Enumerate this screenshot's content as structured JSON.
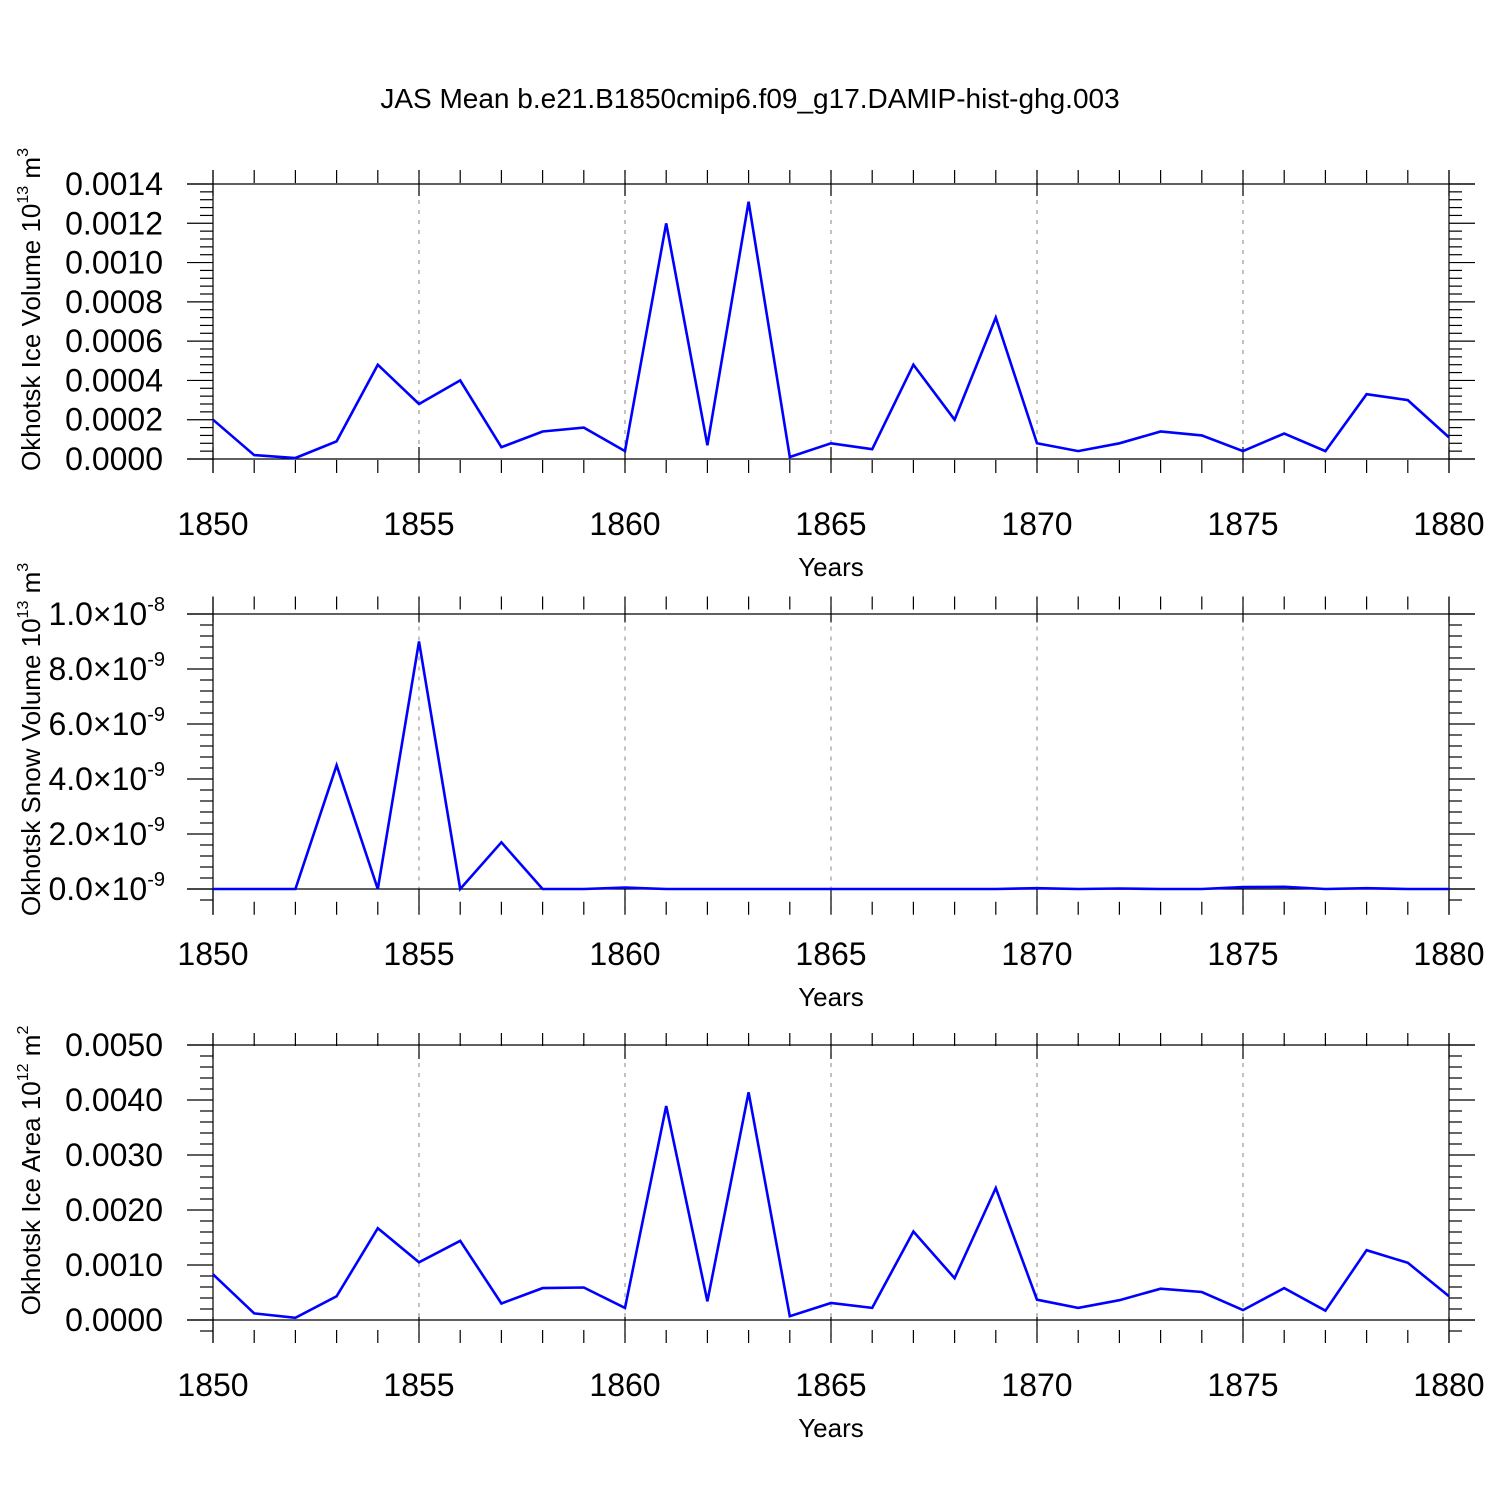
{
  "title": "JAS Mean b.e21.B1850cmip6.f09_g17.DAMIP-hist-ghg.003",
  "colors": {
    "line": "#0000ff",
    "axis": "#000000",
    "grid": "#9a9a9a"
  },
  "chart_data": [
    {
      "type": "line",
      "title": "JAS Mean b.e21.B1850cmip6.f09_g17.DAMIP-hist-ghg.003",
      "xlabel": "Years",
      "ylabel": {
        "text": "Okhotsk Ice Volume 10",
        "exp": "13",
        "unit": " m",
        "unit_exp": "3"
      },
      "xlim": [
        1850,
        1880
      ],
      "ylim": [
        0,
        0.0014
      ],
      "ymin_axis": -1e-05,
      "ymax_axis": 0.00141,
      "yticks": [
        0,
        0.0002,
        0.0004,
        0.0006,
        0.0008,
        0.001,
        0.0012,
        0.0014
      ],
      "ytick_labels": [
        "0.0000",
        "0.0002",
        "0.0004",
        "0.0006",
        "0.0008",
        "0.0010",
        "0.0012",
        "0.0014"
      ],
      "yminor_step": 4e-05,
      "xticks": [
        1850,
        1855,
        1860,
        1865,
        1870,
        1875,
        1880
      ],
      "xtick_labels": [
        "1850",
        "1855",
        "1860",
        "1865",
        "1870",
        "1875",
        "1880"
      ],
      "grid": "dashed vertical at major x ticks",
      "x": [
        1850,
        1851,
        1852,
        1853,
        1854,
        1855,
        1856,
        1857,
        1858,
        1859,
        1860,
        1861,
        1862,
        1863,
        1864,
        1865,
        1866,
        1867,
        1868,
        1869,
        1870,
        1871,
        1872,
        1873,
        1874,
        1875,
        1876,
        1877,
        1878,
        1879,
        1880
      ],
      "series": [
        {
          "name": "Okhotsk Ice Volume",
          "color": "#0000ff",
          "values": [
            0.0002,
            2e-05,
            5e-06,
            9e-05,
            0.00048,
            0.00028,
            0.0004,
            6e-05,
            0.00014,
            0.00016,
            4e-05,
            0.0012,
            7e-05,
            0.00131,
            1e-05,
            8e-05,
            5e-05,
            0.00048,
            0.0002,
            0.00072,
            8e-05,
            4e-05,
            8e-05,
            0.00014,
            0.00012,
            4e-05,
            0.00013,
            4e-05,
            0.00033,
            0.0003,
            0.00011
          ]
        }
      ]
    },
    {
      "type": "line",
      "xlabel": "Years",
      "ylabel": {
        "text": "Okhotsk Snow Volume 10",
        "exp": "13",
        "unit": " m",
        "unit_exp": "3"
      },
      "xlim": [
        1850,
        1880
      ],
      "ylim": [
        0,
        1e-08
      ],
      "ymin_axis": -5e-10,
      "ymax_axis": 1.02e-08,
      "yticks": [
        0,
        2e-09,
        4e-09,
        6e-09,
        8e-09,
        1e-08
      ],
      "ytick_labels": [
        {
          "mant": "0.0",
          "exp": "-9"
        },
        {
          "mant": "2.0",
          "exp": "-9"
        },
        {
          "mant": "4.0",
          "exp": "-9"
        },
        {
          "mant": "6.0",
          "exp": "-9"
        },
        {
          "mant": "8.0",
          "exp": "-9"
        },
        {
          "mant": "1.0",
          "exp": "-8"
        }
      ],
      "yminor_step": 4e-10,
      "xticks": [
        1850,
        1855,
        1860,
        1865,
        1870,
        1875,
        1880
      ],
      "xtick_labels": [
        "1850",
        "1855",
        "1860",
        "1865",
        "1870",
        "1875",
        "1880"
      ],
      "grid": "dashed vertical at major x ticks",
      "x": [
        1850,
        1851,
        1852,
        1853,
        1854,
        1855,
        1856,
        1857,
        1858,
        1859,
        1860,
        1861,
        1862,
        1863,
        1864,
        1865,
        1866,
        1867,
        1868,
        1869,
        1870,
        1871,
        1872,
        1873,
        1874,
        1875,
        1876,
        1877,
        1878,
        1879,
        1880
      ],
      "series": [
        {
          "name": "Okhotsk Snow Volume",
          "color": "#0000ff",
          "values": [
            0,
            0,
            0,
            4.5e-09,
            0,
            9e-09,
            0,
            1.7e-09,
            0,
            0,
            5e-11,
            0,
            0,
            0,
            0,
            0,
            0,
            0,
            0,
            0,
            3e-11,
            0,
            2e-11,
            0,
            0,
            7e-11,
            8e-11,
            0,
            3e-11,
            0,
            0
          ]
        }
      ]
    },
    {
      "type": "line",
      "xlabel": "Years",
      "ylabel": {
        "text": "Okhotsk Ice Area 10",
        "exp": "12",
        "unit": " m",
        "unit_exp": "2"
      },
      "xlim": [
        1850,
        1880
      ],
      "ylim": [
        0,
        0.005
      ],
      "ymin_axis": -0.0002,
      "ymax_axis": 0.005,
      "yticks": [
        0,
        0.001,
        0.002,
        0.003,
        0.004,
        0.005
      ],
      "ytick_labels": [
        "0.0000",
        "0.0010",
        "0.0020",
        "0.0030",
        "0.0040",
        "0.0050"
      ],
      "yminor_step": 0.0002,
      "xticks": [
        1850,
        1855,
        1860,
        1865,
        1870,
        1875,
        1880
      ],
      "xtick_labels": [
        "1850",
        "1855",
        "1860",
        "1865",
        "1870",
        "1875",
        "1880"
      ],
      "grid": "dashed vertical at major x ticks",
      "x": [
        1850,
        1851,
        1852,
        1853,
        1854,
        1855,
        1856,
        1857,
        1858,
        1859,
        1860,
        1861,
        1862,
        1863,
        1864,
        1865,
        1866,
        1867,
        1868,
        1869,
        1870,
        1871,
        1872,
        1873,
        1874,
        1875,
        1876,
        1877,
        1878,
        1879,
        1880
      ],
      "series": [
        {
          "name": "Okhotsk Ice Area",
          "color": "#0000ff",
          "values": [
            0.00083,
            0.00012,
            4e-05,
            0.00043,
            0.00167,
            0.00105,
            0.00144,
            0.0003,
            0.00058,
            0.00059,
            0.00022,
            0.00389,
            0.00034,
            0.00414,
            7e-05,
            0.00031,
            0.00022,
            0.00161,
            0.00076,
            0.0024,
            0.00037,
            0.00022,
            0.00036,
            0.00057,
            0.00051,
            0.00018,
            0.00058,
            0.00017,
            0.00127,
            0.00104,
            0.00043
          ]
        }
      ]
    }
  ]
}
